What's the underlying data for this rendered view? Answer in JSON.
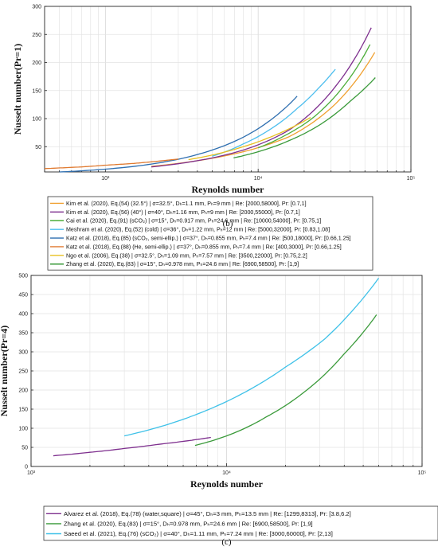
{
  "figure": {
    "panels": [
      {
        "panel_label": "(b)",
        "xlabel": "Reynolds number",
        "ylabel": "Nusselt number(Pr=1)",
        "legend_entries": [
          {
            "text": "Kim et al. (2020), Eq.(54) (32.5°) | σ=32.5°, Dₕ=1.1 mm, Pₕ=9 mm | Re: [2000,58000], Pr: [0.7,1]",
            "color": "#f0a030"
          },
          {
            "text": "Kim et al. (2020), Eq.(56) (40°) | σ=40°, Dₕ=1.16 mm, Pₕ=9 mm | Re: [2000,55000], Pr: [0.7,1]",
            "color": "#7e2f8e"
          },
          {
            "text": "Cai et al. (2020), Eq.(91) (sCO₂) | σ=15°, Dₕ=0.917 mm, Pₕ=24.6 mm | Re: [10000,54000], Pr: [0.75,1]",
            "color": "#4dae3a"
          },
          {
            "text": "Meshram et al. (2020), Eq.(52) (cold) | σ=36°, Dₕ=1.22 mm, Pₕ=12 mm | Re: [5000,32000], Pr: [0.83,1.08]",
            "color": "#4dbeee"
          },
          {
            "text": "Katz et al. (2018), Eq.(85) (sCO₂, semi-ellip.) | σ=37°, Dₕ=0.855 mm, Pₕ=7.4 mm | Re: [500,18000], Pr: [0.66,1.25]",
            "color": "#2f6fb0"
          },
          {
            "text": "Katz et al. (2018), Eq.(88) (He, semi-ellip.) | σ=37°, Dₕ=0.855 mm, Pₕ=7.4 mm | Re: [400,3000], Pr: [0.66,1.25]",
            "color": "#e07a30"
          },
          {
            "text": "Ngo et al. (2006), Eq.(38) | σ=32.5°, Dₕ=1.09 mm, Pₕ=7.57 mm | Re: [3500,22000], Pr: [0.75,2.2]",
            "color": "#e8c020"
          },
          {
            "text": "Zhang et al. (2020), Eq.(83) | σ=15°, Dₕ=0.978 mm, Pₕ=24.6 mm | Re: [6900,58500], Pr: [1,9]",
            "color": "#3a9a3a"
          }
        ]
      },
      {
        "panel_label": "(c)",
        "xlabel": "Reynolds number",
        "ylabel": "Nusselt number(Pr=4)",
        "legend_entries": [
          {
            "text": "Alvarez et al. (2018), Eq.(78) (water,square) | σ=45°, Dₕ=3 mm, Pₕ=13.5 mm | Re: [1299,8313], Pr: [3.8,6.2]",
            "color": "#7e2f8e"
          },
          {
            "text": "Zhang et al. (2020), Eq.(83) | σ=15°, Dₕ=0.978 mm, Pₕ=24.6 mm | Re: [6900,58500], Pr: [1,9]",
            "color": "#3a9a3a"
          },
          {
            "text": "Saeed et al. (2021), Eq.(76) (sCO₂) | σ=40°, Dₕ=1.11 mm, Pₕ=7.24 mm | Re: [3000,60000], Pr: [2,13]",
            "color": "#3ec1e8"
          }
        ]
      }
    ]
  },
  "chart_data": [
    {
      "type": "line",
      "title": "",
      "xlabel": "Reynolds number",
      "ylabel": "Nusselt number(Pr=1)",
      "xscale": "log",
      "xlim": [
        400,
        100000
      ],
      "ylim": [
        5,
        300
      ],
      "x_tick_labels": [
        "10³",
        "10⁴",
        "10⁵"
      ],
      "y_tick_labels": [
        "50",
        "100",
        "150",
        "200",
        "250",
        "300"
      ],
      "grid": true,
      "legend_placement": "below",
      "series": [
        {
          "name": "Kim et al. (2020), Eq.(54) (32.5°) | σ=32.5°, Dₕ=1.1 mm, Pₕ=9 mm | Re: [2000,58000], Pr: [0.7,1]",
          "color": "#f0a030",
          "x": [
            2000,
            4000,
            8000,
            16000,
            32000,
            58000
          ],
          "y": [
            15,
            25,
            41,
            68,
            126,
            218
          ]
        },
        {
          "name": "Kim et al. (2020), Eq.(56) (40°) | σ=40°, Dₕ=1.16 mm, Pₕ=9 mm | Re: [2000,55000], Pr: [0.7,1]",
          "color": "#7e2f8e",
          "x": [
            2000,
            4000,
            8000,
            16000,
            32000,
            55000
          ],
          "y": [
            14,
            25,
            44,
            80,
            157,
            262
          ]
        },
        {
          "name": "Cai et al. (2020), Eq.(91) (sCO₂) | σ=15°, Dₕ=0.917 mm, Pₕ=24.6 mm | Re: [10000,54000], Pr: [0.75,1]",
          "color": "#4dae3a",
          "x": [
            10000,
            15000,
            22000,
            32000,
            44000,
            54000
          ],
          "y": [
            48,
            70,
            98,
            140,
            190,
            232
          ]
        },
        {
          "name": "Meshram et al. (2020), Eq.(52) (cold) | σ=36°, Dₕ=1.22 mm, Pₕ=12 mm | Re: [5000,32000], Pr: [0.83,1.08]",
          "color": "#4dbeee",
          "x": [
            5000,
            8000,
            12000,
            18000,
            25000,
            32000
          ],
          "y": [
            33,
            55,
            81,
            118,
            155,
            188
          ]
        },
        {
          "name": "Katz et al. (2018), Eq.(85) (sCO₂, semi-ellip.) | σ=37°, Dₕ=0.855 mm, Pₕ=7.4 mm | Re: [500,18000], Pr: [0.66,1.25]",
          "color": "#2f6fb0",
          "x": [
            500,
            1000,
            2000,
            4000,
            8000,
            12000,
            18000
          ],
          "y": [
            5,
            10,
            19,
            36,
            67,
            97,
            140
          ]
        },
        {
          "name": "Katz et al. (2018), Eq.(88) (He, semi-ellip.) | σ=37°, Dₕ=0.855 mm, Pₕ=7.4 mm | Re: [400,3000], Pr: [0.66,1.25]",
          "color": "#e07a30",
          "x": [
            400,
            700,
            1000,
            1500,
            2000,
            3000
          ],
          "y": [
            11,
            14,
            17,
            20,
            23,
            28
          ]
        },
        {
          "name": "Ngo et al. (2006), Eq.(38) | σ=32.5°, Dₕ=1.09 mm, Pₕ=7.57 mm | Re: [3500,22000], Pr: [0.75,2.2]",
          "color": "#e8c020",
          "x": [
            3500,
            5000,
            8000,
            12000,
            16000,
            22000
          ],
          "y": [
            27,
            35,
            50,
            67,
            82,
            102
          ]
        },
        {
          "name": "Zhang et al. (2020), Eq.(83) | σ=15°, Dₕ=0.978 mm, Pₕ=24.6 mm | Re: [6900,58500], Pr: [1,9]",
          "color": "#3a9a3a",
          "x": [
            6900,
            10000,
            16000,
            25000,
            40000,
            58500
          ],
          "y": [
            30,
            41,
            61,
            88,
            131,
            173
          ]
        }
      ]
    },
    {
      "type": "line",
      "title": "",
      "xlabel": "Reynolds number",
      "ylabel": "Nusselt number(Pr=4)",
      "xscale": "log",
      "xlim": [
        1000,
        100000
      ],
      "ylim": [
        0,
        500
      ],
      "x_tick_labels": [
        "10³",
        "10⁴",
        "10⁵"
      ],
      "y_tick_labels": [
        "0",
        "50",
        "100",
        "150",
        "200",
        "250",
        "300",
        "350",
        "400",
        "450",
        "500"
      ],
      "grid": true,
      "legend_placement": "below",
      "series": [
        {
          "name": "Alvarez et al. (2018), Eq.(78) (water,square) | σ=45°, Dₕ=3 mm, Pₕ=13.5 mm | Re: [1299,8313], Pr: [3.8,6.2]",
          "color": "#7e2f8e",
          "x": [
            1299,
            2000,
            3000,
            4500,
            6500,
            8313
          ],
          "y": [
            28,
            37,
            47,
            58,
            68,
            76
          ]
        },
        {
          "name": "Zhang et al. (2020), Eq.(83) | σ=15°, Dₕ=0.978 mm, Pₕ=24.6 mm | Re: [6900,58500], Pr: [1,9]",
          "color": "#3a9a3a",
          "x": [
            6900,
            10000,
            16000,
            25000,
            40000,
            58500
          ],
          "y": [
            55,
            80,
            130,
            195,
            295,
            397
          ]
        },
        {
          "name": "Saeed et al. (2021), Eq.(76) (sCO₂) | σ=40°, Dₕ=1.11 mm, Pₕ=7.24 mm | Re: [3000,60000], Pr: [2,13]",
          "color": "#3ec1e8",
          "x": [
            3000,
            5000,
            8000,
            13000,
            20000,
            32000,
            60000
          ],
          "y": [
            80,
            110,
            148,
            200,
            260,
            335,
            493
          ]
        }
      ]
    }
  ]
}
